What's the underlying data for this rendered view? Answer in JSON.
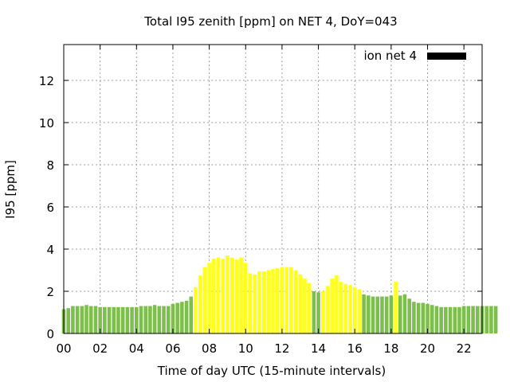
{
  "chart_data": {
    "type": "bar",
    "title": "Total I95 zenith [ppm] on NET 4, DoY=043",
    "xlabel": "Time of day UTC (15-minute intervals)",
    "ylabel": "I95 [ppm]",
    "xlim": [
      0,
      23
    ],
    "ylim": [
      0,
      13.7
    ],
    "x_tick_labels": [
      "00",
      "02",
      "04",
      "06",
      "08",
      "10",
      "12",
      "14",
      "16",
      "18",
      "20",
      "22"
    ],
    "y_ticks": [
      0,
      2,
      4,
      6,
      8,
      10,
      12
    ],
    "grid": true,
    "legend": {
      "label": "ion net 4",
      "position": "top-right",
      "color": "#000000"
    },
    "colors": {
      "green": "#7cbf4a",
      "yellow": "#ffff1a",
      "frame": "#000000",
      "grid": "#a0a0a0"
    },
    "interval_hours": 0.25,
    "values": [
      1.15,
      1.2,
      1.3,
      1.3,
      1.3,
      1.35,
      1.3,
      1.3,
      1.25,
      1.25,
      1.25,
      1.25,
      1.25,
      1.25,
      1.25,
      1.25,
      1.25,
      1.3,
      1.3,
      1.3,
      1.35,
      1.3,
      1.3,
      1.3,
      1.4,
      1.45,
      1.5,
      1.55,
      1.75,
      2.2,
      2.75,
      3.15,
      3.35,
      3.55,
      3.6,
      3.55,
      3.7,
      3.6,
      3.5,
      3.6,
      3.35,
      2.85,
      2.8,
      2.95,
      2.95,
      3.0,
      3.05,
      3.1,
      3.15,
      3.15,
      3.15,
      3.0,
      2.8,
      2.6,
      2.4,
      2.0,
      1.95,
      2.0,
      2.25,
      2.6,
      2.75,
      2.45,
      2.35,
      2.3,
      2.2,
      2.1,
      1.85,
      1.8,
      1.75,
      1.75,
      1.75,
      1.75,
      1.8,
      2.45,
      1.8,
      1.85,
      1.65,
      1.5,
      1.45,
      1.45,
      1.4,
      1.35,
      1.3,
      1.25,
      1.25,
      1.25,
      1.25,
      1.25,
      1.3,
      1.3,
      1.3,
      1.3,
      1.3,
      1.3,
      1.3,
      1.3
    ],
    "bar_colors": [
      "g",
      "g",
      "g",
      "g",
      "g",
      "g",
      "g",
      "g",
      "g",
      "g",
      "g",
      "g",
      "g",
      "g",
      "g",
      "g",
      "g",
      "g",
      "g",
      "g",
      "g",
      "g",
      "g",
      "g",
      "g",
      "g",
      "g",
      "g",
      "g",
      "y",
      "y",
      "y",
      "y",
      "y",
      "y",
      "y",
      "y",
      "y",
      "y",
      "y",
      "y",
      "y",
      "y",
      "y",
      "y",
      "y",
      "y",
      "y",
      "y",
      "y",
      "y",
      "y",
      "y",
      "y",
      "y",
      "g",
      "g",
      "y",
      "y",
      "y",
      "y",
      "y",
      "y",
      "y",
      "y",
      "y",
      "g",
      "g",
      "g",
      "g",
      "g",
      "g",
      "g",
      "y",
      "g",
      "g",
      "g",
      "g",
      "g",
      "g",
      "g",
      "g",
      "g",
      "g",
      "g",
      "g",
      "g",
      "g",
      "g",
      "g",
      "g",
      "g",
      "g",
      "g",
      "g",
      "g"
    ]
  }
}
